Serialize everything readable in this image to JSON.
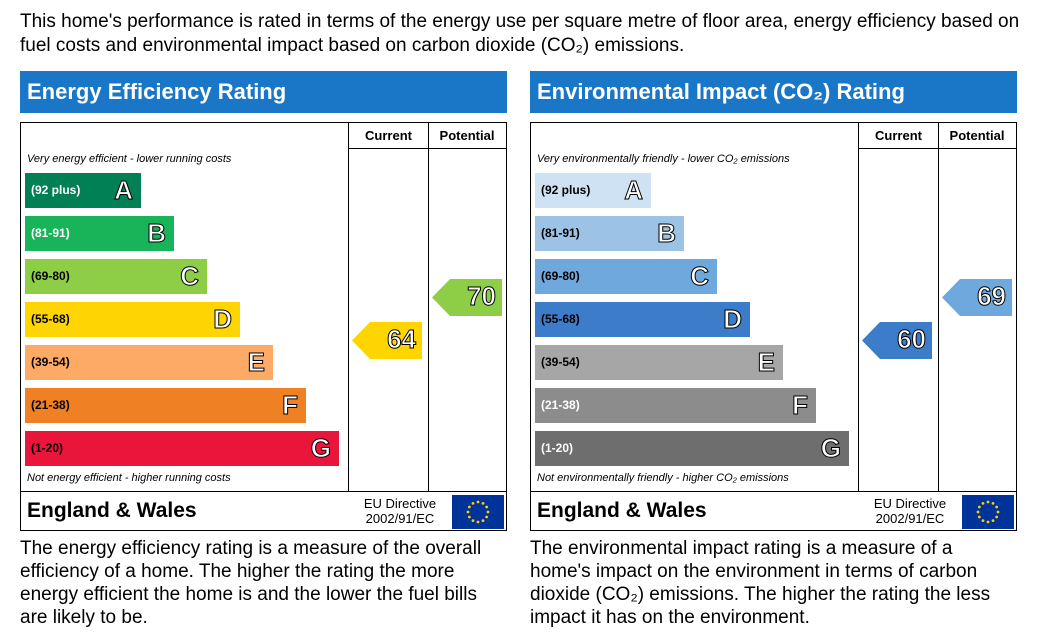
{
  "intro_text": "This home's performance is rated in terms of the energy use per square metre of floor area, energy efficiency based on fuel costs and environmental impact based on carbon dioxide (CO₂) emissions.",
  "chart_data": [
    {
      "type": "bar",
      "title": "Energy Efficiency Rating",
      "columns": [
        "Current",
        "Potential"
      ],
      "top_note": "Very energy efficient - lower running costs",
      "bottom_note": "Not energy efficient - higher running costs",
      "bands": [
        {
          "letter": "A",
          "range": "(92 plus)",
          "color": "#008054",
          "text_dark": false
        },
        {
          "letter": "B",
          "range": "(81-91)",
          "color": "#19b459",
          "text_dark": false
        },
        {
          "letter": "C",
          "range": "(69-80)",
          "color": "#8dce46",
          "text_dark": true
        },
        {
          "letter": "D",
          "range": "(55-68)",
          "color": "#ffd500",
          "text_dark": true
        },
        {
          "letter": "E",
          "range": "(39-54)",
          "color": "#fcaa65",
          "text_dark": true
        },
        {
          "letter": "F",
          "range": "(21-38)",
          "color": "#ef8023",
          "text_dark": true
        },
        {
          "letter": "G",
          "range": "(1-20)",
          "color": "#e9153b",
          "text_dark": true
        }
      ],
      "current": {
        "value": "64",
        "band": "D",
        "color": "#ffd500"
      },
      "potential": {
        "value": "70",
        "band": "C",
        "color": "#8dce46"
      },
      "footer_region": "England & Wales",
      "footer_directive": "EU Directive 2002/91/EC",
      "description": "The energy efficiency rating is a measure of the overall efficiency of a home. The higher the rating the more energy efficient the home is and the lower the fuel bills are likely to be."
    },
    {
      "type": "bar",
      "title": "Environmental Impact (CO₂) Rating",
      "columns": [
        "Current",
        "Potential"
      ],
      "top_note": "Very environmentally friendly - lower CO₂ emissions",
      "bottom_note": "Not environmentally friendly - higher CO₂ emissions",
      "bands": [
        {
          "letter": "A",
          "range": "(92 plus)",
          "color": "#cfe2f3",
          "text_dark": true
        },
        {
          "letter": "B",
          "range": "(81-91)",
          "color": "#9cc2e5",
          "text_dark": true
        },
        {
          "letter": "C",
          "range": "(69-80)",
          "color": "#6fa8dc",
          "text_dark": true
        },
        {
          "letter": "D",
          "range": "(55-68)",
          "color": "#3d7cc9",
          "text_dark": true
        },
        {
          "letter": "E",
          "range": "(39-54)",
          "color": "#a6a6a6",
          "text_dark": true
        },
        {
          "letter": "F",
          "range": "(21-38)",
          "color": "#8c8c8c",
          "text_dark": false
        },
        {
          "letter": "G",
          "range": "(1-20)",
          "color": "#6e6e6e",
          "text_dark": false
        }
      ],
      "current": {
        "value": "60",
        "band": "D",
        "color": "#3d7cc9"
      },
      "potential": {
        "value": "69",
        "band": "C",
        "color": "#6fa8dc"
      },
      "footer_region": "England & Wales",
      "footer_directive": "EU Directive 2002/91/EC",
      "description": "The environmental impact rating is a measure of a home's impact on the environment in terms of carbon dioxide (CO₂) emissions. The higher the rating the less impact it has on the environment."
    }
  ]
}
